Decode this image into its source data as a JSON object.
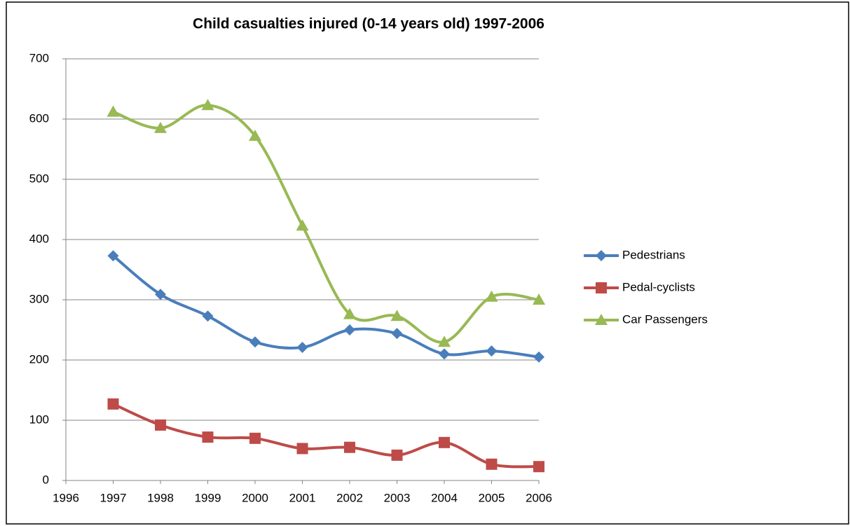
{
  "chart_data": {
    "type": "line",
    "title": "Child casualties injured (0-14 years old) 1997-2006",
    "x": [
      1997,
      1998,
      1999,
      2000,
      2001,
      2002,
      2003,
      2004,
      2005,
      2006
    ],
    "xlim": [
      1996,
      2006
    ],
    "xticks": [
      1996,
      1997,
      1998,
      1999,
      2000,
      2001,
      2002,
      2003,
      2004,
      2005,
      2006
    ],
    "ylim": [
      0,
      700
    ],
    "yticks": [
      0,
      100,
      200,
      300,
      400,
      500,
      600,
      700
    ],
    "grid": true,
    "smooth": true,
    "legend": "right",
    "series": [
      {
        "name": "Pedestrians",
        "color": "#4a7ebb",
        "marker": "diamond",
        "values": [
          373,
          309,
          273,
          230,
          221,
          250,
          244,
          210,
          215,
          205
        ]
      },
      {
        "name": "Pedal-cyclists",
        "color": "#be4b48",
        "marker": "square",
        "values": [
          127,
          92,
          72,
          70,
          53,
          55,
          42,
          63,
          27,
          23
        ]
      },
      {
        "name": "Car Passengers",
        "color": "#98b954",
        "marker": "triangle",
        "values": [
          612,
          585,
          623,
          572,
          423,
          276,
          273,
          230,
          305,
          300
        ]
      }
    ]
  }
}
